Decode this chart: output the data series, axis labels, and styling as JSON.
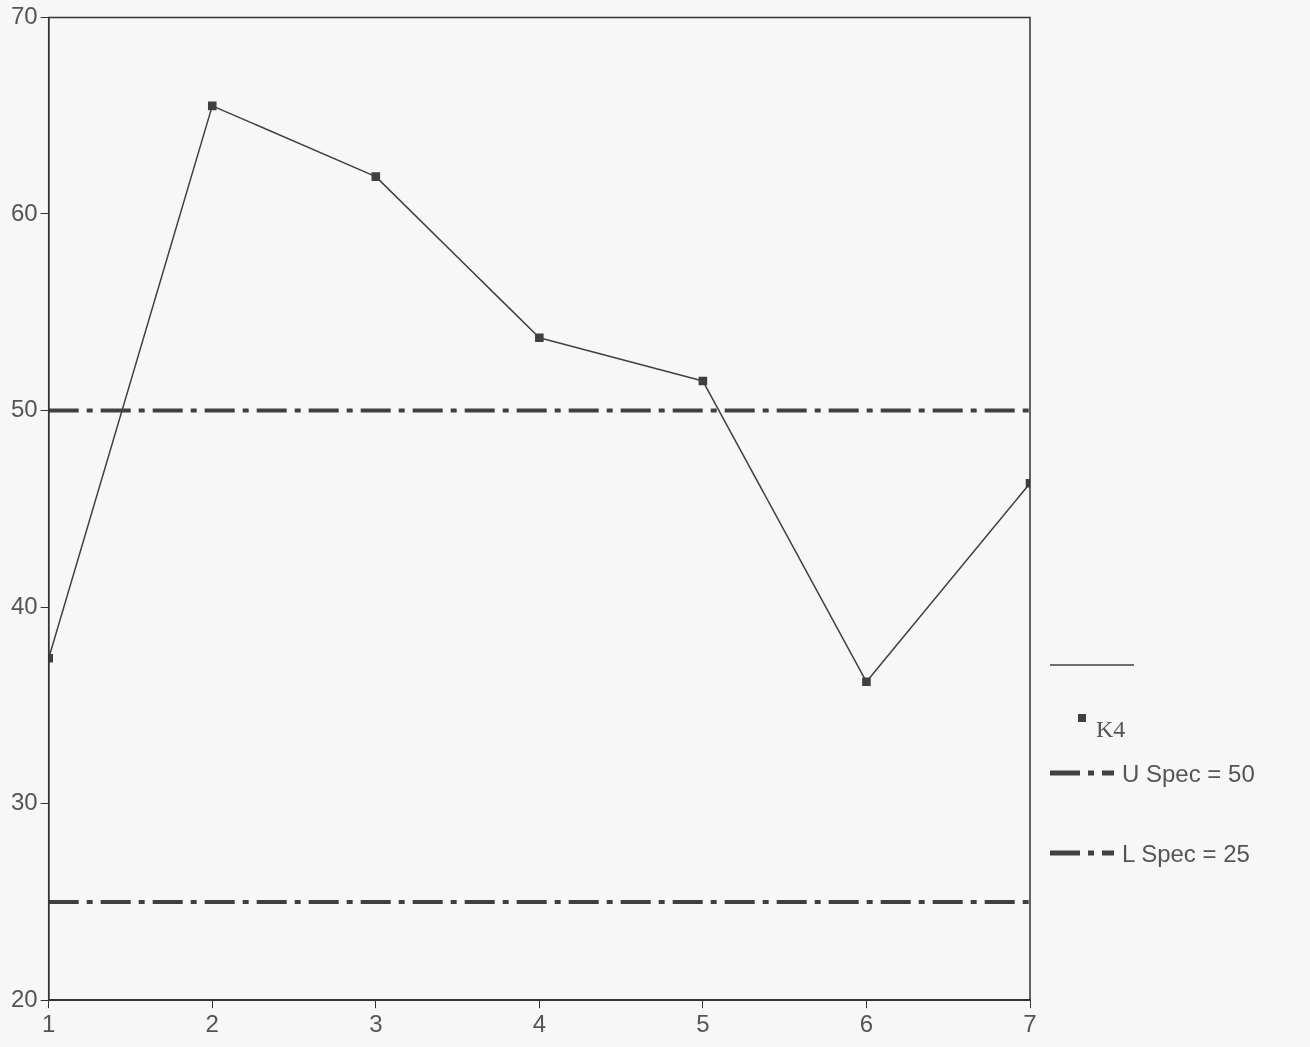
{
  "chart_data": {
    "type": "line",
    "x": [
      1,
      2,
      3,
      4,
      5,
      6,
      7
    ],
    "series": [
      {
        "name": "K4",
        "color": "#404040",
        "values": [
          37.4,
          65.5,
          61.9,
          53.7,
          51.5,
          36.2,
          46.3
        ]
      }
    ],
    "xlim": [
      1,
      7
    ],
    "xticks": [
      1,
      2,
      3,
      4,
      5,
      6,
      7
    ],
    "ylim": [
      20,
      70
    ],
    "yticks": [
      20,
      30,
      40,
      50,
      60,
      70
    ],
    "ref_lines": [
      {
        "axis": "y",
        "value": 50,
        "label": "U Spec = 50",
        "color": "#404040",
        "line_style": "dashed"
      },
      {
        "axis": "y",
        "value": 25,
        "label": "L Spec = 25",
        "color": "#404040",
        "line_style": "dashed"
      }
    ],
    "marker": "square",
    "line_style": "solid",
    "grid": false,
    "legend": "right"
  }
}
